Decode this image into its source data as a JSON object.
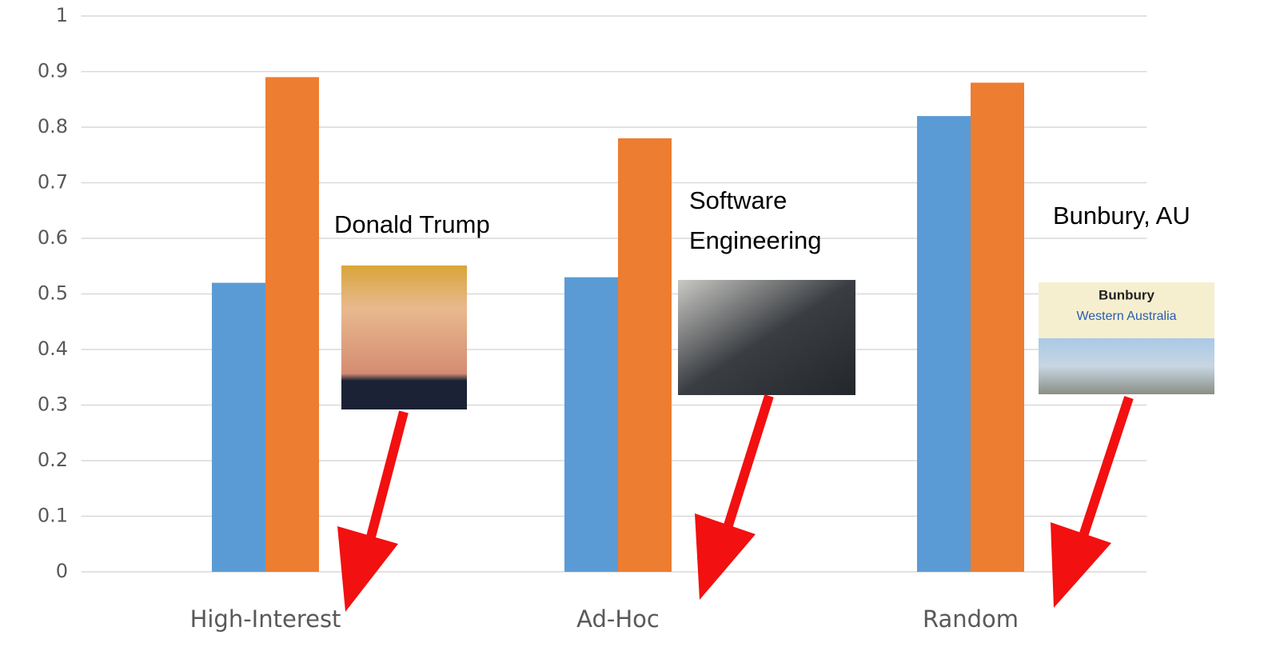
{
  "chart_data": {
    "type": "bar",
    "categories": [
      "High-Interest",
      "Ad-Hoc",
      "Random"
    ],
    "series": [
      {
        "color": "#5b9bd5",
        "values": [
          0.52,
          0.53,
          0.82
        ]
      },
      {
        "color": "#ed7d31",
        "values": [
          0.89,
          0.78,
          0.88
        ]
      }
    ],
    "ylim": [
      0,
      1
    ],
    "yticks": [
      0,
      0.1,
      0.2,
      0.3,
      0.4,
      0.5,
      0.6,
      0.7,
      0.8,
      0.9,
      1
    ],
    "grid": true,
    "annotations": [
      {
        "lines": [
          "Donald Trump"
        ]
      },
      {
        "lines": [
          "Software",
          "Engineering"
        ]
      },
      {
        "lines": [
          "Bunbury, AU"
        ],
        "image_text": [
          "Bunbury",
          "Western Australia"
        ]
      }
    ]
  }
}
